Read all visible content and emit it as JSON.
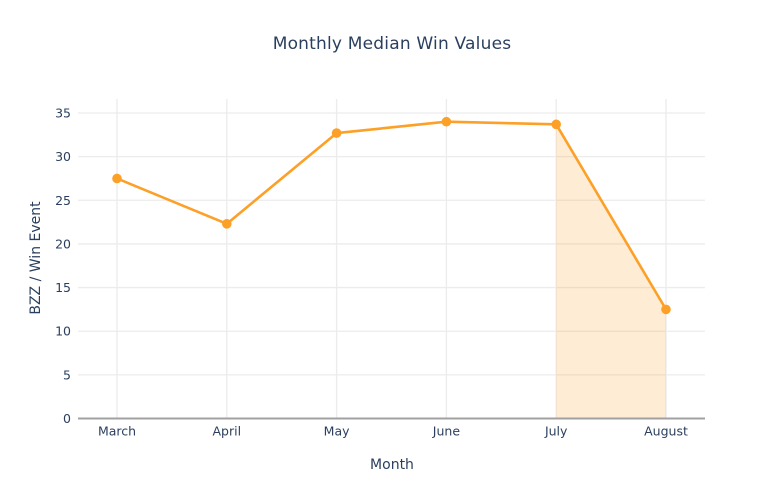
{
  "chart_data": {
    "type": "line",
    "title": "Monthly Median Win Values",
    "xlabel": "Month",
    "ylabel": "BZZ / Win Event",
    "categories": [
      "March",
      "April",
      "May",
      "June",
      "July",
      "August"
    ],
    "values": [
      27.5,
      22.3,
      32.7,
      34.0,
      33.7,
      12.5
    ],
    "y_ticks": [
      0,
      5,
      10,
      15,
      20,
      25,
      30,
      35
    ],
    "ylim": [
      0,
      36.6
    ],
    "grid": true,
    "legend": false,
    "marker": "circle",
    "highlight_region": {
      "from": "July",
      "to": "August",
      "style": "area-under-line"
    }
  },
  "colors": {
    "line": "#fca028",
    "marker": "#fca028",
    "area_fill": "rgba(252, 166, 40, 0.2)",
    "grid": "#ececec",
    "axis_line": "#a1a1a1",
    "text": "#2a3f5f",
    "background": "#ffffff"
  }
}
